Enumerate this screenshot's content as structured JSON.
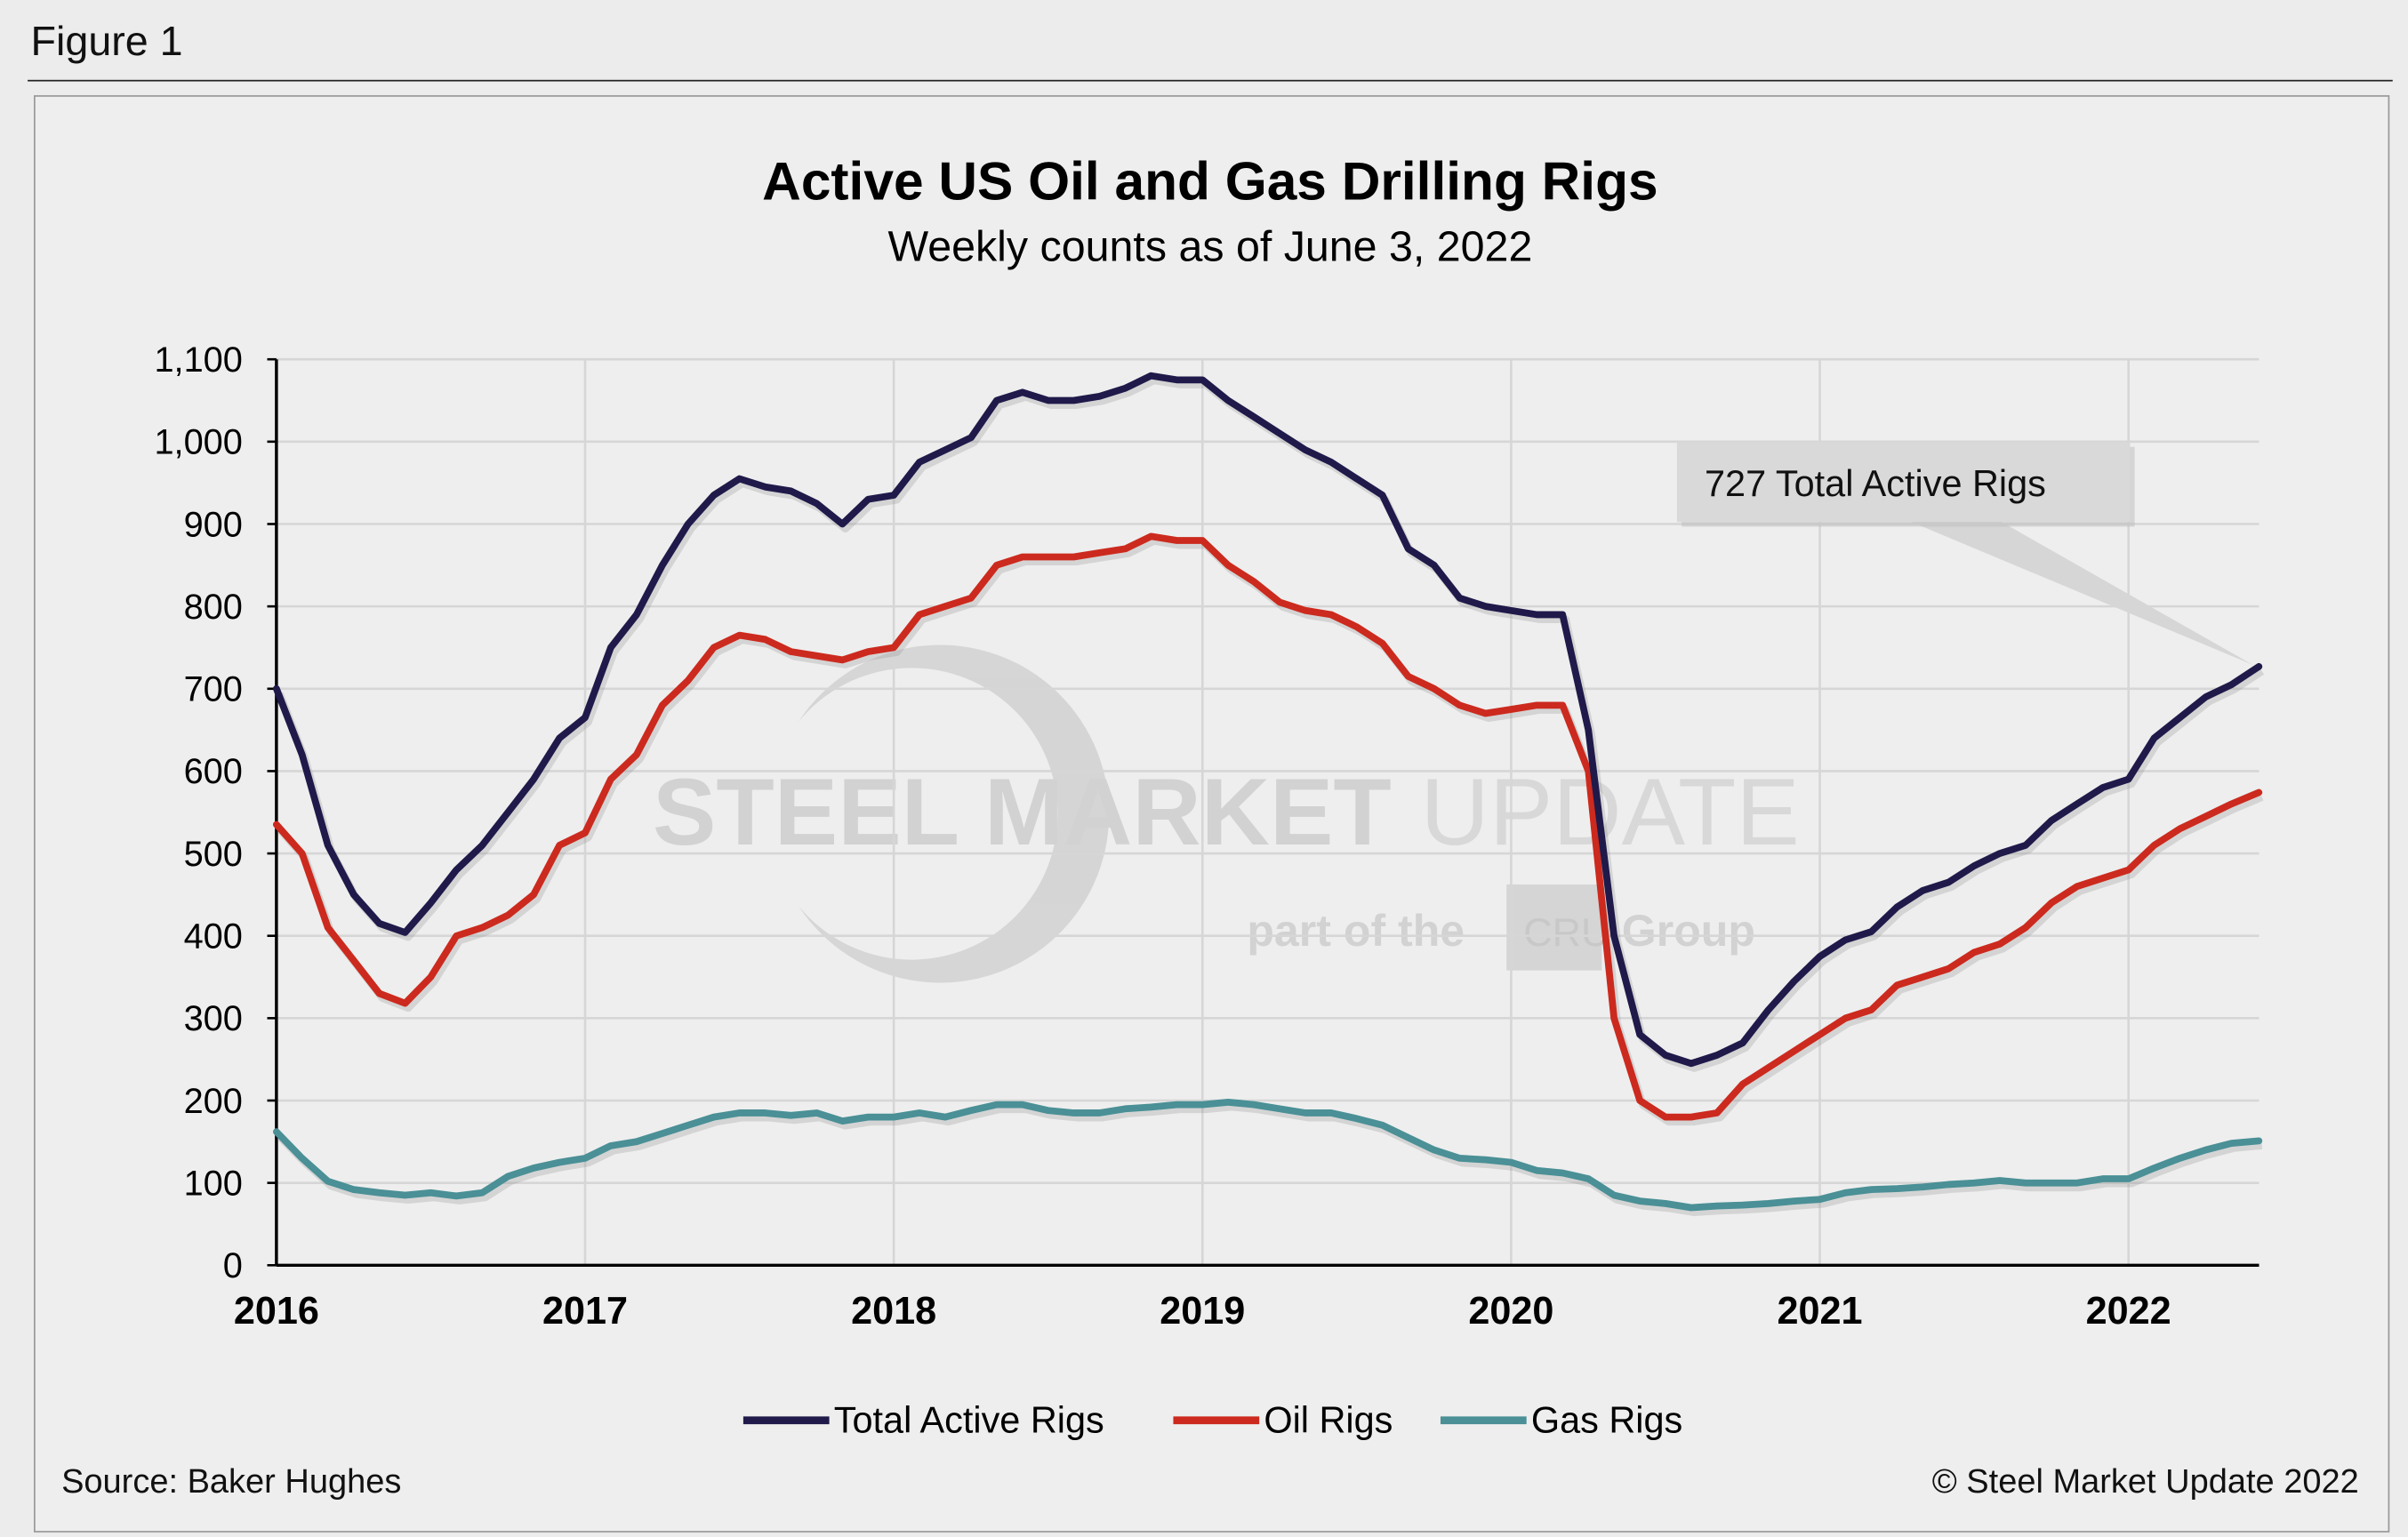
{
  "figure_label": "Figure 1",
  "source": "Source: Baker Hughes",
  "copyright": "© Steel Market Update 2022",
  "watermark": {
    "line1_bold": "STEEL MARKET",
    "line1_light": "UPDATE",
    "line2": "part of the",
    "cru": "CRU",
    "group": "Group"
  },
  "chart_data": {
    "type": "line",
    "title": "Active US Oil and Gas Drilling Rigs",
    "subtitle": "Weekly counts as of June 3, 2022",
    "ylim": [
      0,
      1100
    ],
    "yticks": [
      "0",
      "100",
      "200",
      "300",
      "400",
      "500",
      "600",
      "700",
      "800",
      "900",
      "1,000",
      "1,100"
    ],
    "ytick_values": [
      0,
      100,
      200,
      300,
      400,
      500,
      600,
      700,
      800,
      900,
      1000,
      1100
    ],
    "xticks": [
      "2016",
      "2017",
      "2018",
      "2019",
      "2020",
      "2021",
      "2022"
    ],
    "grid": true,
    "legend_position": "bottom",
    "annotation": {
      "text": "727 Total Active Rigs",
      "x": "2022-06-03",
      "y": 727
    },
    "x": [
      "2016-01",
      "2016-02",
      "2016-03",
      "2016-04",
      "2016-05",
      "2016-06",
      "2016-07",
      "2016-08",
      "2016-09",
      "2016-10",
      "2016-11",
      "2016-12",
      "2017-01",
      "2017-02",
      "2017-03",
      "2017-04",
      "2017-05",
      "2017-06",
      "2017-07",
      "2017-08",
      "2017-09",
      "2017-10",
      "2017-11",
      "2017-12",
      "2018-01",
      "2018-02",
      "2018-03",
      "2018-04",
      "2018-05",
      "2018-06",
      "2018-07",
      "2018-08",
      "2018-09",
      "2018-10",
      "2018-11",
      "2018-12",
      "2019-01",
      "2019-02",
      "2019-03",
      "2019-04",
      "2019-05",
      "2019-06",
      "2019-07",
      "2019-08",
      "2019-09",
      "2019-10",
      "2019-11",
      "2019-12",
      "2020-01",
      "2020-02",
      "2020-03",
      "2020-04",
      "2020-05",
      "2020-06",
      "2020-07",
      "2020-08",
      "2020-09",
      "2020-10",
      "2020-11",
      "2020-12",
      "2021-01",
      "2021-02",
      "2021-03",
      "2021-04",
      "2021-05",
      "2021-06",
      "2021-07",
      "2021-08",
      "2021-09",
      "2021-10",
      "2021-11",
      "2021-12",
      "2022-01",
      "2022-02",
      "2022-03",
      "2022-04",
      "2022-05",
      "2022-06-03"
    ],
    "series": [
      {
        "name": "Total Active Rigs",
        "color": "#1f1a4a",
        "values": [
          700,
          620,
          510,
          450,
          415,
          404,
          440,
          480,
          510,
          550,
          590,
          640,
          665,
          750,
          790,
          850,
          900,
          935,
          955,
          945,
          940,
          925,
          900,
          930,
          935,
          975,
          990,
          1005,
          1050,
          1060,
          1050,
          1050,
          1055,
          1065,
          1080,
          1075,
          1075,
          1050,
          1030,
          1010,
          990,
          975,
          955,
          935,
          870,
          850,
          810,
          800,
          795,
          790,
          790,
          650,
          400,
          280,
          255,
          245,
          255,
          270,
          310,
          345,
          375,
          395,
          405,
          435,
          455,
          465,
          485,
          500,
          510,
          540,
          560,
          580,
          590,
          640,
          665,
          690,
          705,
          727
        ]
      },
      {
        "name": "Oil Rigs",
        "color": "#cc2a1e",
        "values": [
          535,
          500,
          410,
          370,
          330,
          318,
          350,
          400,
          410,
          425,
          450,
          510,
          525,
          590,
          620,
          680,
          710,
          750,
          765,
          760,
          745,
          740,
          735,
          745,
          750,
          790,
          800,
          810,
          850,
          860,
          860,
          860,
          865,
          870,
          885,
          880,
          880,
          850,
          830,
          805,
          795,
          790,
          775,
          755,
          715,
          700,
          680,
          670,
          675,
          680,
          680,
          600,
          300,
          200,
          180,
          180,
          185,
          220,
          240,
          260,
          280,
          300,
          310,
          340,
          350,
          360,
          380,
          390,
          410,
          440,
          460,
          470,
          480,
          510,
          530,
          545,
          560,
          574
        ]
      },
      {
        "name": "Gas Rigs",
        "color": "#4a9096",
        "values": [
          162,
          130,
          102,
          92,
          88,
          85,
          88,
          84,
          88,
          108,
          118,
          125,
          130,
          145,
          150,
          160,
          170,
          180,
          185,
          185,
          182,
          185,
          175,
          180,
          180,
          185,
          180,
          188,
          195,
          195,
          188,
          185,
          185,
          190,
          192,
          195,
          195,
          198,
          195,
          190,
          185,
          185,
          178,
          170,
          155,
          140,
          130,
          128,
          125,
          115,
          112,
          105,
          85,
          78,
          75,
          70,
          72,
          73,
          75,
          78,
          80,
          88,
          92,
          93,
          95,
          98,
          100,
          103,
          100,
          100,
          100,
          105,
          105,
          118,
          130,
          140,
          148,
          151
        ]
      }
    ]
  }
}
